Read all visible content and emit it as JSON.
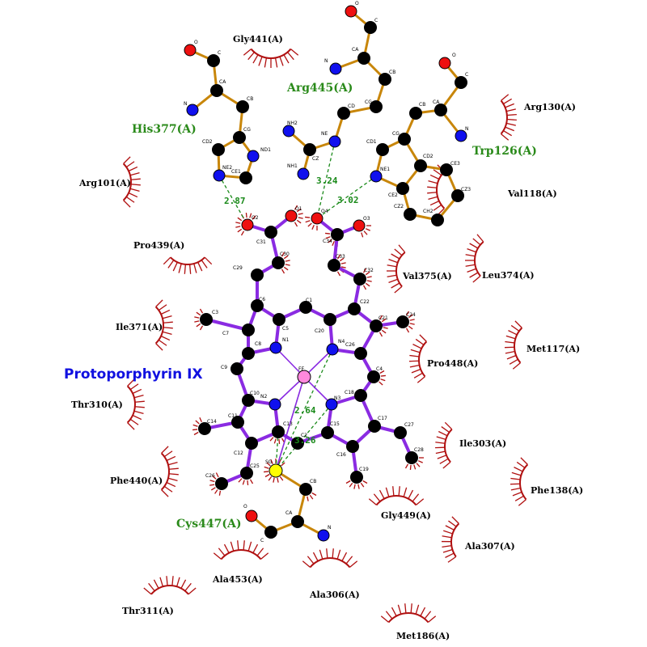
{
  "ligand": {
    "name": "Protoporphyrin IX",
    "atoms": {
      "C1": "C1",
      "C2": "C2",
      "C3": "C3",
      "C4": "C4",
      "C5": "C5",
      "C6": "C6",
      "C7": "C7",
      "C8": "C8",
      "C9": "C9",
      "C10": "C10",
      "C11": "C11",
      "C12": "C12",
      "C13": "C13",
      "C14": "C14",
      "C15": "C15",
      "C16": "C16",
      "C17": "C17",
      "C18": "C18",
      "C19": "C19",
      "C20": "C20",
      "C21": "C21",
      "C22": "C22",
      "C23": "C23",
      "C24": "C24",
      "C25": "C25",
      "C26": "C26",
      "C27": "C27",
      "C28": "C28",
      "C29": "C29",
      "C30": "C30",
      "C31": "C31",
      "C32": "C32",
      "C33": "C33",
      "C34": "C34",
      "N1": "N1",
      "N2": "N2",
      "N3": "N3",
      "N4": "N4",
      "O1": "O1",
      "O2": "O2",
      "O3": "O3",
      "O4": "O4",
      "FE": "FE"
    }
  },
  "bonded_residues": {
    "his377": {
      "name": "His377(A)",
      "atoms": {
        "O": "O",
        "C": "C",
        "CA": "CA",
        "N": "N",
        "CB": "CB",
        "CG": "CG",
        "CD2": "CD2",
        "ND1": "ND1",
        "NE2": "NE2",
        "CE1": "CE1"
      }
    },
    "arg445": {
      "name": "Arg445(A)",
      "atoms": {
        "O": "O",
        "C": "C",
        "CA": "CA",
        "N": "N",
        "CB": "CB",
        "CG": "CG",
        "CD": "CD",
        "NE": "NE",
        "CZ": "CZ",
        "NH1": "NH1",
        "NH2": "NH2"
      }
    },
    "trp126": {
      "name": "Trp126(A)",
      "atoms": {
        "O": "O",
        "C": "C",
        "CA": "CA",
        "N": "N",
        "CB": "CB",
        "CG": "CG",
        "CD1": "CD1",
        "NE1": "NE1",
        "CD2": "CD2",
        "CE2": "CE2",
        "CE3": "CE3",
        "CZ2": "CZ2",
        "CZ3": "CZ3",
        "CH2": "CH2"
      }
    },
    "cys447": {
      "name": "Cys447(A)",
      "atoms": {
        "O": "O",
        "C": "C",
        "CA": "CA",
        "N": "N",
        "CB": "CB",
        "SG": "SG"
      }
    }
  },
  "hydrogen_bonds": {
    "his377_ne2_to_o2": "2.87",
    "arg445_ne_to_o4": "3.24",
    "trp126_ne1_to_o4": "3.02",
    "fe_to_sg": "2.64",
    "sg_contact": "3.26"
  },
  "hydrophobic_residues": {
    "gly441": "Gly441(A)",
    "arg130": "Arg130(A)",
    "arg101": "Arg101(A)",
    "val118": "Val118(A)",
    "pro439": "Pro439(A)",
    "val375": "Val375(A)",
    "leu374": "Leu374(A)",
    "ile371": "Ile371(A)",
    "met117": "Met117(A)",
    "pro448": "Pro448(A)",
    "thr310": "Thr310(A)",
    "ile303": "Ile303(A)",
    "phe440": "Phe440(A)",
    "phe138": "Phe138(A)",
    "gly449": "Gly449(A)",
    "ala307": "Ala307(A)",
    "ala453": "Ala453(A)",
    "ala306": "Ala306(A)",
    "thr311": "Thr311(A)",
    "met186": "Met186(A)"
  },
  "colors": {
    "ligand_bond": "#8a2be2",
    "residue_bond": "#c8860a",
    "carbon": "#000000",
    "nitrogen": "#1010ee",
    "oxygen": "#ee1010",
    "iron": "#ff88dd",
    "sulfur": "#ffff00",
    "hbond": "#1a8a1a",
    "hydrophobic_arc": "#b01010"
  }
}
